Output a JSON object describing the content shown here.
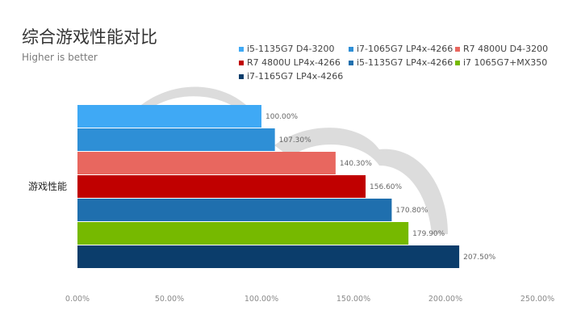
{
  "chart_data": {
    "type": "bar",
    "orientation": "horizontal",
    "title": "综合游戏性能对比",
    "subtitle": "Higher is better",
    "categories": [
      "游戏性能"
    ],
    "series": [
      {
        "name": "i5-1135G7 D4-3200",
        "values": [
          100.0
        ],
        "label": "100.00%",
        "color": "#3fa9f5"
      },
      {
        "name": "i7-1065G7 LP4x-4266",
        "values": [
          107.3
        ],
        "label": "107.30%",
        "color": "#2e8fd6"
      },
      {
        "name": "R7 4800U D4-3200",
        "values": [
          140.3
        ],
        "label": "140.30%",
        "color": "#e8675f"
      },
      {
        "name": "R7 4800U LP4x-4266",
        "values": [
          156.6
        ],
        "label": "156.60%",
        "color": "#c00000"
      },
      {
        "name": "i5-1135G7 LP4x-4266",
        "values": [
          170.8
        ],
        "label": "170.80%",
        "color": "#1f6fae"
      },
      {
        "name": "i7 1065G7+MX350",
        "values": [
          179.9
        ],
        "label": "179.90%",
        "color": "#76b900"
      },
      {
        "name": "i7-1165G7 LP4x-4266",
        "values": [
          207.5
        ],
        "label": "207.50%",
        "color": "#0b3d6b"
      }
    ],
    "x_ticks": [
      "0.00%",
      "50.00%",
      "100.00%",
      "150.00%",
      "200.00%",
      "250.00%"
    ],
    "xlim": [
      0,
      250
    ],
    "legend_position": "top-right",
    "grid": false
  }
}
